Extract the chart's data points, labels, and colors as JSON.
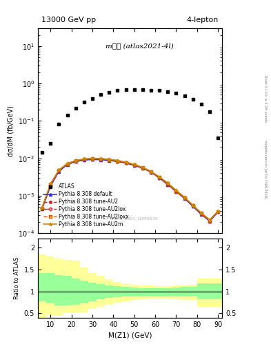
{
  "title_left": "13000 GeV pp",
  "title_right": "4-lepton",
  "annotation": "mℹℹ (atlas2021-4l)",
  "watermark": "ATLAS_2021_I1849535",
  "ylabel_main": "dσ/dM (fb/GeV)",
  "ylabel_ratio": "Ratio to ATLAS",
  "xlabel": "M(Z1) (GeV)",
  "right_label_top": "Rivet 3.1.10; ≥ 3.2M events",
  "right_label_bottom": "mcplots.cern.ch [arXiv:1306.3436]",
  "xbins": [
    4,
    8,
    12,
    16,
    20,
    24,
    28,
    32,
    36,
    40,
    44,
    48,
    52,
    56,
    60,
    64,
    68,
    72,
    76,
    80,
    84,
    88,
    92
  ],
  "atlas_data": [
    0.0145,
    0.025,
    0.083,
    0.14,
    0.22,
    0.32,
    0.4,
    0.5,
    0.58,
    0.65,
    0.68,
    0.7,
    0.68,
    0.67,
    0.65,
    0.6,
    0.55,
    0.47,
    0.38,
    0.28,
    0.18,
    0.035
  ],
  "py8_default": [
    0.00045,
    0.0018,
    0.0045,
    0.0068,
    0.0082,
    0.009,
    0.0093,
    0.0092,
    0.0088,
    0.0082,
    0.0075,
    0.0065,
    0.0055,
    0.0043,
    0.003,
    0.002,
    0.0013,
    0.00085,
    0.00052,
    0.00032,
    0.00021,
    0.00037
  ],
  "py8_AU2": [
    0.00048,
    0.002,
    0.0048,
    0.0072,
    0.0086,
    0.0095,
    0.0098,
    0.0097,
    0.0093,
    0.0086,
    0.0078,
    0.0068,
    0.0057,
    0.0044,
    0.0031,
    0.0021,
    0.0014,
    0.0009,
    0.00055,
    0.00034,
    0.00022,
    0.00038
  ],
  "py8_AU2lox": [
    0.00046,
    0.0019,
    0.0047,
    0.007,
    0.0085,
    0.0093,
    0.0096,
    0.0095,
    0.0091,
    0.0084,
    0.0076,
    0.0066,
    0.0055,
    0.0043,
    0.003,
    0.002,
    0.0013,
    0.00088,
    0.00054,
    0.00033,
    0.00021,
    0.00037
  ],
  "py8_AU2loxx": [
    0.00047,
    0.002,
    0.0048,
    0.0071,
    0.0086,
    0.0094,
    0.0097,
    0.0096,
    0.0092,
    0.0085,
    0.0077,
    0.0067,
    0.0056,
    0.0044,
    0.0031,
    0.0021,
    0.0013,
    0.00089,
    0.00055,
    0.00034,
    0.00022,
    0.00038
  ],
  "py8_AU2m": [
    0.00049,
    0.0021,
    0.0049,
    0.0073,
    0.0088,
    0.0097,
    0.01,
    0.0099,
    0.0095,
    0.0088,
    0.008,
    0.0069,
    0.0058,
    0.0045,
    0.0032,
    0.0022,
    0.0014,
    0.00092,
    0.00056,
    0.00035,
    0.00023,
    0.00039
  ],
  "ratio_yellow_lo": [
    0.38,
    0.45,
    0.45,
    0.5,
    0.5,
    0.52,
    0.6,
    0.65,
    0.7,
    0.75,
    0.78,
    0.8,
    0.82,
    0.83,
    0.83,
    0.83,
    0.82,
    0.81,
    0.8,
    0.65,
    0.65,
    0.65
  ],
  "ratio_yellow_hi": [
    1.85,
    1.8,
    1.75,
    1.72,
    1.7,
    1.55,
    1.42,
    1.35,
    1.28,
    1.22,
    1.18,
    1.16,
    1.14,
    1.13,
    1.12,
    1.12,
    1.13,
    1.14,
    1.15,
    1.3,
    1.3,
    1.3
  ],
  "ratio_green_lo": [
    0.78,
    0.72,
    0.68,
    0.68,
    0.7,
    0.73,
    0.78,
    0.82,
    0.85,
    0.87,
    0.88,
    0.89,
    0.89,
    0.89,
    0.89,
    0.89,
    0.89,
    0.89,
    0.88,
    0.82,
    0.82,
    0.82
  ],
  "ratio_green_hi": [
    1.42,
    1.42,
    1.38,
    1.35,
    1.3,
    1.25,
    1.2,
    1.17,
    1.14,
    1.12,
    1.1,
    1.09,
    1.08,
    1.08,
    1.08,
    1.08,
    1.09,
    1.1,
    1.11,
    1.18,
    1.18,
    1.18
  ],
  "xlim": [
    4,
    92
  ],
  "ylim_main": [
    0.0001,
    30
  ],
  "ylim_ratio": [
    0.4,
    2.2
  ],
  "ratio_yticks": [
    0.5,
    1.0,
    1.5,
    2.0
  ],
  "color_default": "#3333cc",
  "color_AU2": "#cc2222",
  "color_AU2lox": "#cc2222",
  "color_AU2loxx": "#cc5500",
  "color_AU2m": "#cc8800",
  "color_yellow": "#ffff99",
  "color_green": "#99ff99"
}
